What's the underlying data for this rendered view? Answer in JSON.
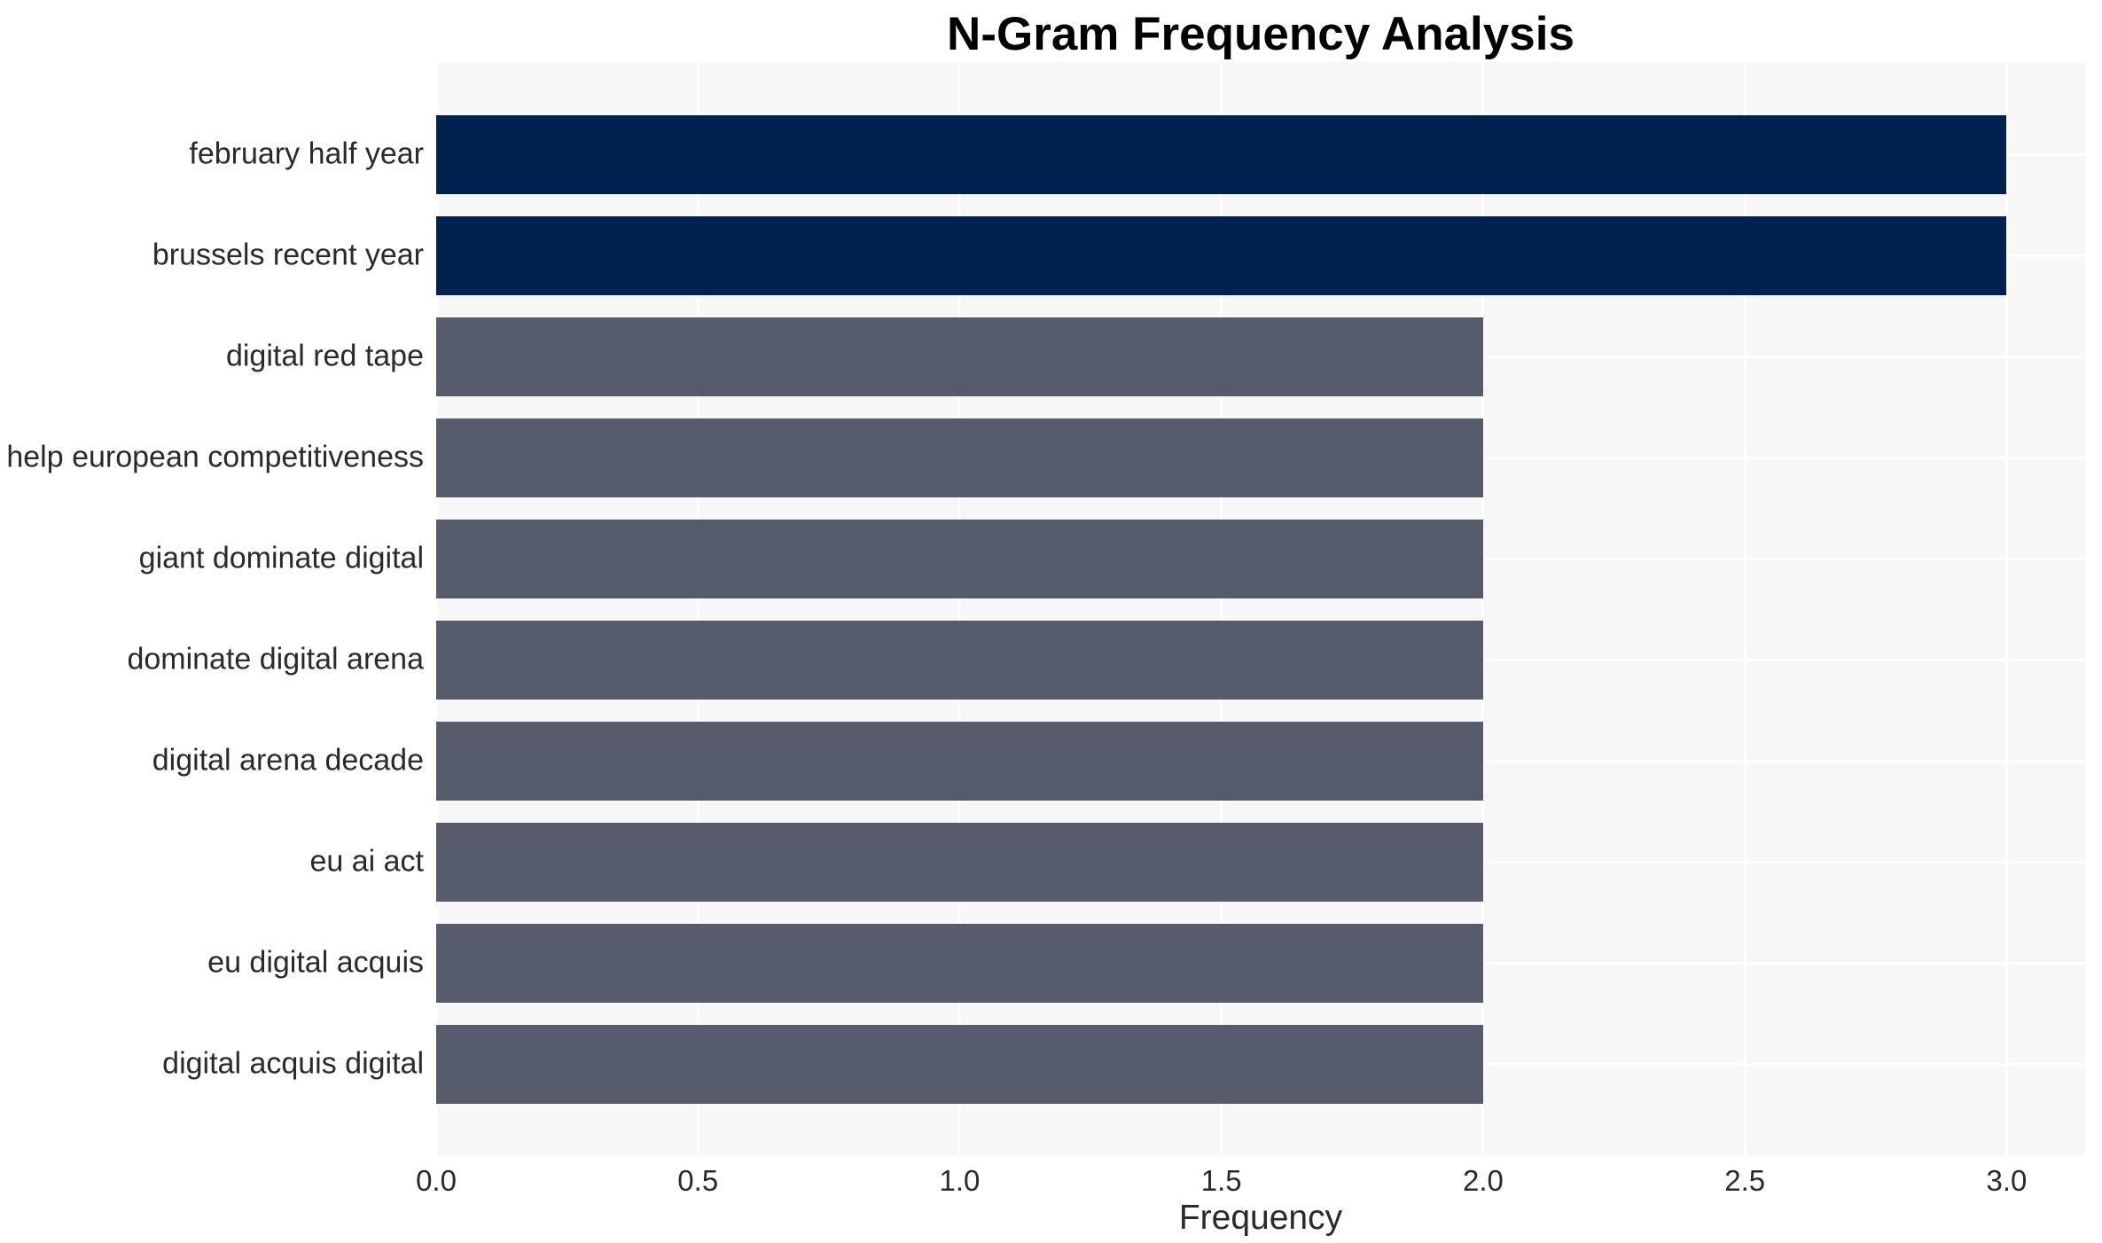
{
  "chart_data": {
    "type": "bar",
    "orientation": "horizontal",
    "title": "N-Gram Frequency Analysis",
    "xlabel": "Frequency",
    "ylabel": "",
    "categories": [
      "february half year",
      "brussels recent year",
      "digital red tape",
      "help european competitiveness",
      "giant dominate digital",
      "dominate digital arena",
      "digital arena decade",
      "eu ai act",
      "eu digital acquis",
      "digital acquis digital"
    ],
    "values": [
      3,
      3,
      2,
      2,
      2,
      2,
      2,
      2,
      2,
      2
    ],
    "bar_colors": [
      "#01214e",
      "#01214e",
      "#565c6b",
      "#565c6b",
      "#565c6b",
      "#565c6b",
      "#565c6b",
      "#565c6b",
      "#565c6b",
      "#565c6b"
    ],
    "xticks": [
      "0.0",
      "0.5",
      "1.0",
      "1.5",
      "2.0",
      "2.5",
      "3.0"
    ],
    "xtick_values": [
      0,
      0.5,
      1,
      1.5,
      2,
      2.5,
      3
    ],
    "xlim": [
      0,
      3.15
    ],
    "grid": true,
    "legend": false,
    "colors": {
      "high_freq_bar": "#01214e",
      "normal_freq_bar": "#565c6b",
      "plot_background": "#f7f7f7",
      "gridline": "#ffffff",
      "tick_text": "#2a2a2a",
      "title_text": "#000000"
    }
  }
}
